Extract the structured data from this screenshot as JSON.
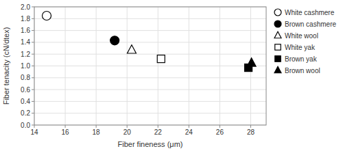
{
  "chart_data": {
    "type": "scatter",
    "xlabel": "Fiber fineness (μm)",
    "ylabel": "Fiber tenacity (cN/dtex)",
    "xlim": [
      14,
      29
    ],
    "ylim": [
      0,
      2
    ],
    "xticks": [
      14,
      16,
      18,
      20,
      22,
      24,
      26,
      28
    ],
    "yticks": [
      {
        "value": 0,
        "label": "0.0"
      },
      0.2,
      0.4,
      0.6,
      0.8,
      {
        "value": 1.0,
        "label": "1.0"
      },
      1.2,
      1.4,
      1.6,
      1.8,
      {
        "value": 2.0,
        "label": "2.0"
      }
    ],
    "grid": true,
    "legend": "right",
    "series": [
      {
        "name": "White cashmere",
        "x": [
          14.8
        ],
        "values": [
          1.85
        ],
        "marker": "circle",
        "color": "white"
      },
      {
        "name": "Brown cashmere",
        "x": [
          19.2
        ],
        "values": [
          1.43
        ],
        "marker": "circle",
        "color": "black"
      },
      {
        "name": "White wool",
        "x": [
          20.3
        ],
        "values": [
          1.27
        ],
        "marker": "triangle",
        "color": "white"
      },
      {
        "name": "White yak",
        "x": [
          22.2
        ],
        "values": [
          1.12
        ],
        "marker": "square",
        "color": "white"
      },
      {
        "name": "Brown yak",
        "x": [
          27.85
        ],
        "values": [
          0.97
        ],
        "marker": "square",
        "color": "black"
      },
      {
        "name": "Brown wool",
        "x": [
          28.05
        ],
        "values": [
          1.05
        ],
        "marker": "triangle",
        "color": "black"
      }
    ]
  }
}
